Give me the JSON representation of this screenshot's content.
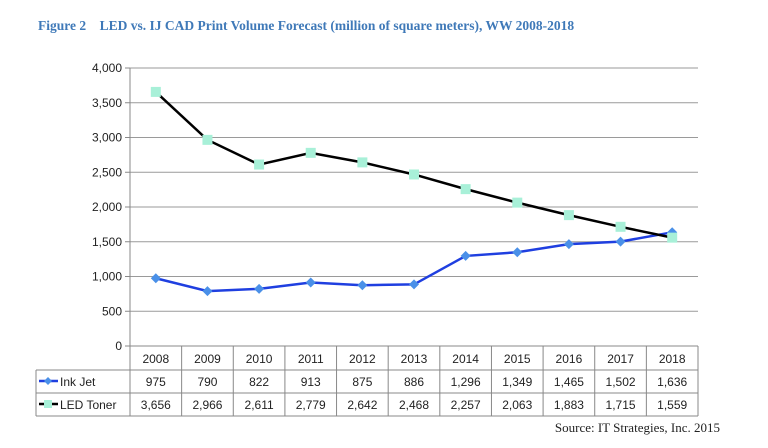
{
  "figure": {
    "label": "Figure 2",
    "title": "LED vs. IJ CAD Print Volume Forecast (million of square meters), WW 2008-2018",
    "source": "Source: IT Strategies, Inc. 2015"
  },
  "chart_data": {
    "type": "line",
    "title": "LED vs. IJ CAD Print Volume Forecast (million of square meters), WW 2008-2018",
    "categories": [
      "2008",
      "2009",
      "2010",
      "2011",
      "2012",
      "2013",
      "2014",
      "2015",
      "2016",
      "2017",
      "2018"
    ],
    "ylim": [
      0,
      4000
    ],
    "yticks": [
      0,
      500,
      1000,
      1500,
      2000,
      2500,
      3000,
      3500,
      4000
    ],
    "ytick_labels": [
      "0",
      "500",
      "1,000",
      "1,500",
      "2,000",
      "2,500",
      "3,000",
      "3,500",
      "4,000"
    ],
    "grid": "horizontal",
    "legend": "data-table",
    "series": [
      {
        "name": "Ink Jet",
        "color": "#1f3fe0",
        "marker_color": "#4a90e8",
        "marker": "diamond",
        "values": [
          975,
          790,
          822,
          913,
          875,
          886,
          1296,
          1349,
          1465,
          1502,
          1636
        ],
        "labels": [
          "975",
          "790",
          "822",
          "913",
          "875",
          "886",
          "1,296",
          "1,349",
          "1,465",
          "1,502",
          "1,636"
        ]
      },
      {
        "name": "LED Toner",
        "color": "#000000",
        "marker_color": "#a8f0d8",
        "marker": "square",
        "values": [
          3656,
          2966,
          2611,
          2779,
          2642,
          2468,
          2257,
          2063,
          1883,
          1715,
          1559
        ],
        "labels": [
          "3,656",
          "2,966",
          "2,611",
          "2,779",
          "2,642",
          "2,468",
          "2,257",
          "2,063",
          "1,883",
          "1,715",
          "1,559"
        ]
      }
    ]
  }
}
